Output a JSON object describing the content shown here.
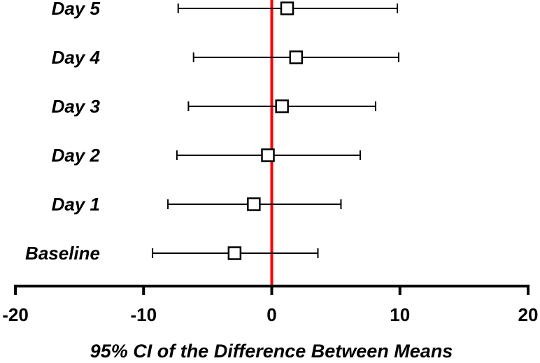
{
  "chart_data": {
    "type": "forest",
    "xlabel": "95% CI of the Difference Between Means",
    "xlim": [
      -20,
      20
    ],
    "xticks": [
      -20,
      -10,
      0,
      10,
      20
    ],
    "xtick_labels": [
      "-20",
      "-10",
      "0",
      "10",
      "20"
    ],
    "reference_line": {
      "x": 0,
      "color": "#ff0000"
    },
    "rows": [
      {
        "label": "Day 5",
        "mean": 1.2,
        "lower": -7.3,
        "upper": 9.8
      },
      {
        "label": "Day 4",
        "mean": 1.9,
        "lower": -6.1,
        "upper": 9.9
      },
      {
        "label": "Day 3",
        "mean": 0.8,
        "lower": -6.5,
        "upper": 8.1
      },
      {
        "label": "Day 2",
        "mean": -0.3,
        "lower": -7.4,
        "upper": 6.9
      },
      {
        "label": "Day 1",
        "mean": -1.4,
        "lower": -8.1,
        "upper": 5.4
      },
      {
        "label": "Baseline",
        "mean": -2.9,
        "lower": -9.3,
        "upper": 3.6
      }
    ],
    "grid": false
  }
}
